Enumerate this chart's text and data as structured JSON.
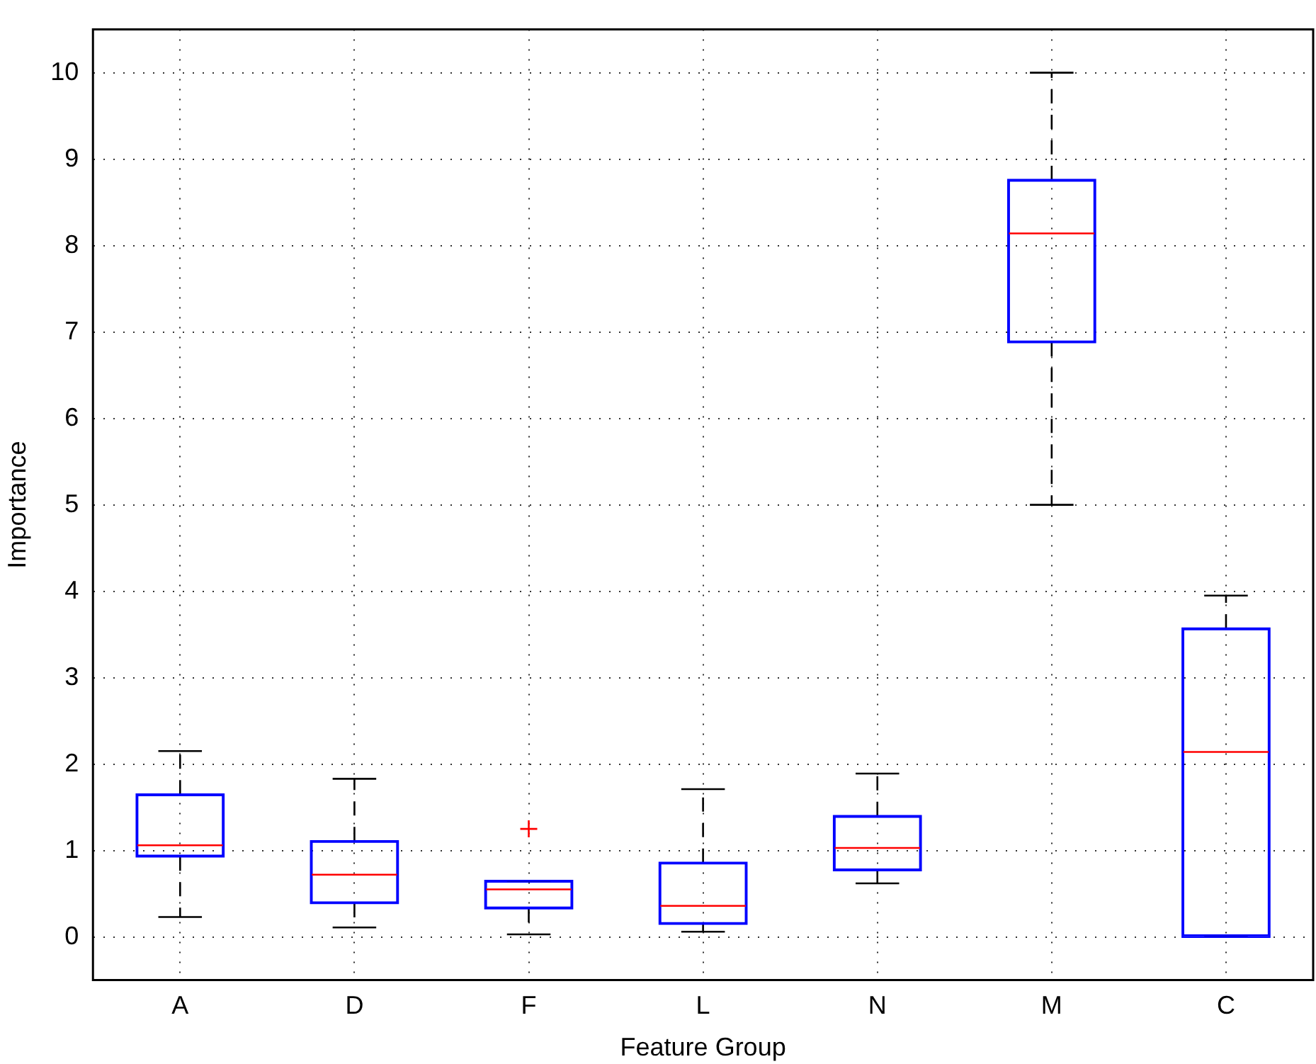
{
  "chart_data": {
    "type": "box",
    "xlabel": "Feature Group",
    "ylabel": "Importance",
    "categories": [
      "A",
      "D",
      "F",
      "L",
      "N",
      "M",
      "C"
    ],
    "series": [
      {
        "color": "#0000ff",
        "boxes": [
          {
            "low": 0.23,
            "q1": 0.93,
            "median": 1.06,
            "q3": 1.65,
            "high": 2.15
          },
          {
            "low": 0.11,
            "q1": 0.39,
            "median": 0.72,
            "q3": 1.11,
            "high": 1.83
          },
          {
            "low": 0.03,
            "q1": 0.33,
            "median": 0.55,
            "q3": 0.65,
            "high": 0.65,
            "outliers": [
              1.25
            ]
          },
          {
            "low": 0.06,
            "q1": 0.15,
            "median": 0.36,
            "q3": 0.86,
            "high": 1.71
          },
          {
            "low": 0.62,
            "q1": 0.77,
            "median": 1.03,
            "q3": 1.4,
            "high": 1.89
          },
          {
            "low": 5.0,
            "q1": 6.88,
            "median": 8.14,
            "q3": 8.76,
            "high": 10.0
          },
          {
            "low": 0,
            "q1": 0,
            "median": 2.14,
            "q3": 3.57,
            "high": 3.95
          }
        ]
      }
    ],
    "ylim": [
      -0.5,
      10.5
    ],
    "yticks": [
      0,
      1,
      2,
      3,
      4,
      5,
      6,
      7,
      8,
      9,
      10
    ],
    "grid": true
  }
}
